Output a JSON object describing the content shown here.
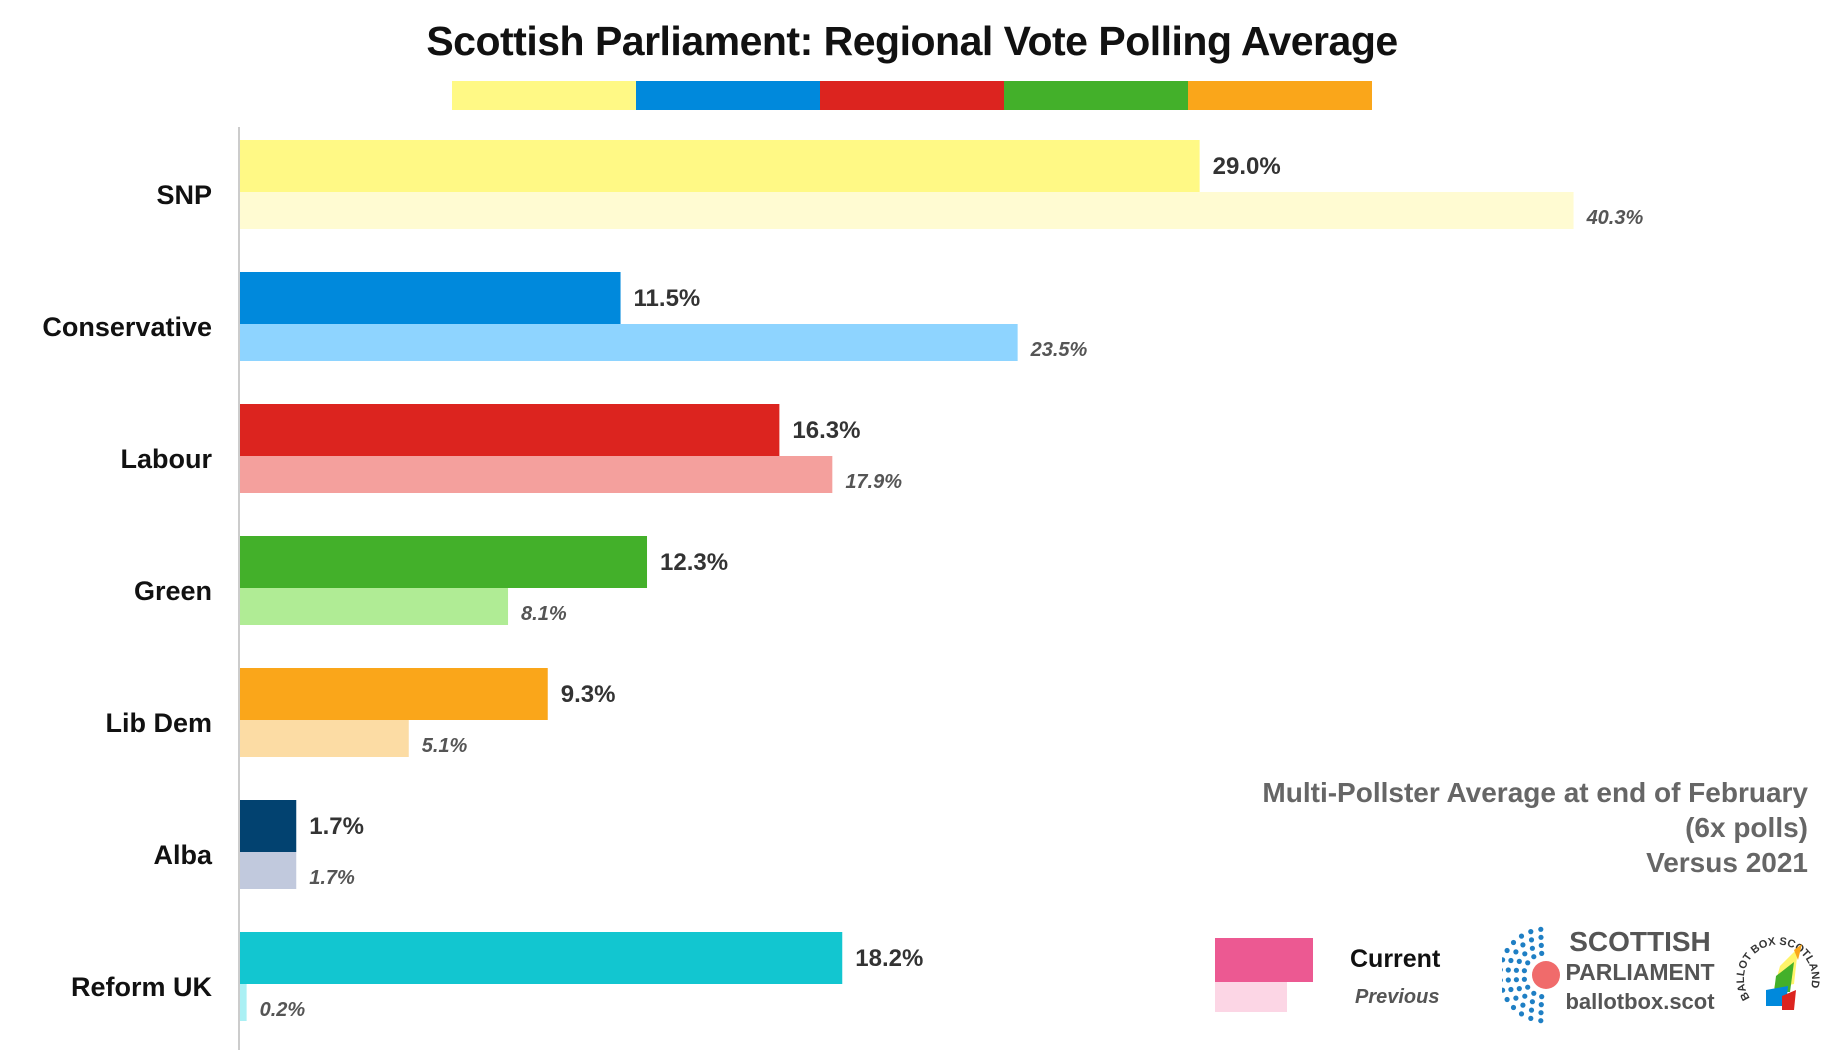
{
  "colors": {
    "SNP": [
      "#fff985",
      "#fffbd2"
    ],
    "Conservative": [
      "#0089dc",
      "#8ed4ff"
    ],
    "Labour": [
      "#dc241f",
      "#f4a09d"
    ],
    "Green": [
      "#43b02a",
      "#b0ec95"
    ],
    "Lib Dem": [
      "#faa61a",
      "#fcdca4"
    ],
    "Alba": [
      "#024270",
      "#c1c9dd"
    ],
    "Reform UK": [
      "#12c6d0",
      "#aaf0f4"
    ],
    "legend_current": "#ec5992",
    "legend_previous": "#fcd6e5"
  },
  "header_stripe": [
    "#fff985",
    "#0089dc",
    "#dc241f",
    "#43b02a",
    "#faa61a"
  ],
  "chart_data": {
    "type": "bar",
    "orientation": "horizontal",
    "title": "Scottish Parliament: Regional Vote Polling Average",
    "categories": [
      "SNP",
      "Conservative",
      "Labour",
      "Green",
      "Lib Dem",
      "Alba",
      "Reform UK"
    ],
    "series": [
      {
        "name": "Current",
        "values": [
          29.0,
          11.5,
          16.3,
          12.3,
          9.3,
          1.7,
          18.2
        ],
        "labels": [
          "29.0%",
          "11.5%",
          "16.3%",
          "12.3%",
          "9.3%",
          "1.7%",
          "18.2%"
        ]
      },
      {
        "name": "Previous",
        "values": [
          40.3,
          23.5,
          17.9,
          8.1,
          5.1,
          1.7,
          0.2
        ],
        "labels": [
          "40.3%",
          "23.5%",
          "17.9%",
          "8.1%",
          "5.1%",
          "1.7%",
          "0.2%"
        ]
      }
    ],
    "xlim": [
      0,
      44
    ],
    "xlabel": "",
    "ylabel": "",
    "grid": false,
    "legend": "bottom-right"
  },
  "note": {
    "line1": "Multi-Pollster Average at end of February",
    "line2": "(6x polls)",
    "line3": "Versus 2021"
  },
  "legend": {
    "current": "Current",
    "previous": "Previous"
  },
  "branding": {
    "line1": "SCOTTISH",
    "line2": "PARLIAMENT",
    "line3": "ballotbox.scot",
    "badge_text": "BALLOT BOX SCOTLAND"
  }
}
